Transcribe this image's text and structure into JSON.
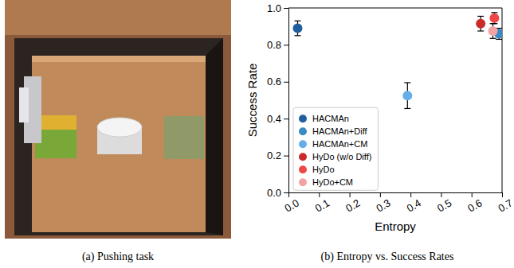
{
  "image_caption": "(a) Pushing task",
  "chart_data": {
    "type": "scatter",
    "title": "(b) Entropy vs. Success Rates",
    "x_label": "Entropy",
    "y_label": "Success Rate",
    "xlim": [
      0,
      0.7
    ],
    "ylim": [
      0,
      1
    ],
    "xticks": [
      {
        "value": 0,
        "label": "0.0"
      },
      {
        "value": 0.1,
        "label": "0.1"
      },
      {
        "value": 0.2,
        "label": "0.2"
      },
      {
        "value": 0.3,
        "label": "0.3"
      },
      {
        "value": 0.4,
        "label": "0.4"
      },
      {
        "value": 0.5,
        "label": "0.5"
      },
      {
        "value": 0.6,
        "label": "0.6"
      },
      {
        "value": 0.7,
        "label": "0.7"
      }
    ],
    "yticks": [
      {
        "value": 0,
        "label": "0.0"
      },
      {
        "value": 0.2,
        "label": "0.2"
      },
      {
        "value": 0.4,
        "label": "0.4"
      },
      {
        "value": 0.6,
        "label": "0.6"
      },
      {
        "value": 0.8,
        "label": "0.8"
      },
      {
        "value": 1,
        "label": "1.0"
      }
    ],
    "grid": false,
    "legend": "center left",
    "marker": "circle",
    "series": [
      {
        "name": "HACMAn",
        "color": "#1f5f9e",
        "x": [
          0.03
        ],
        "values": [
          0.89
        ],
        "error": [
          0.04
        ]
      },
      {
        "name": "HACMAn+Diff",
        "color": "#3a8ac4",
        "x": [
          0.69
        ],
        "values": [
          0.86
        ],
        "error": [
          0.03
        ]
      },
      {
        "name": "HACMAn+CM",
        "color": "#67aee6",
        "x": [
          0.39
        ],
        "values": [
          0.525
        ],
        "error": [
          0.07
        ]
      },
      {
        "name": "HyDo (w/o Diff)",
        "color": "#cc2a2a",
        "x": [
          0.63
        ],
        "values": [
          0.915
        ],
        "error": [
          0.04
        ]
      },
      {
        "name": "HyDo",
        "color": "#ef4747",
        "x": [
          0.675
        ],
        "values": [
          0.945
        ],
        "error": [
          0.03
        ]
      },
      {
        "name": "HyDo+CM",
        "color": "#f4a3a3",
        "x": [
          0.67
        ],
        "values": [
          0.875
        ],
        "error": [
          0.04
        ]
      }
    ]
  }
}
